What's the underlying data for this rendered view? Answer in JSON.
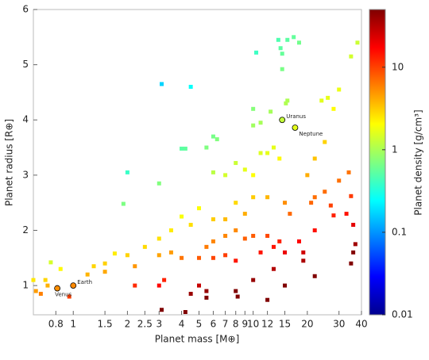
{
  "chart_data": {
    "type": "scatter",
    "x_label": "Planet mass [M⊕]",
    "y_label": "Planet radius [R⊕]",
    "colorbar_label": "Planet density [g/cm³]",
    "x_scale": "log",
    "xlim": [
      0.6,
      40
    ],
    "xticks": [
      0.8,
      1,
      1.5,
      2,
      2.5,
      3,
      4,
      5,
      6,
      7,
      8,
      9,
      10,
      12,
      15,
      20,
      30,
      40
    ],
    "ylim": [
      0.47,
      6
    ],
    "yticks": [
      1,
      2,
      3,
      4,
      5,
      6
    ],
    "colorbar_scale": "log",
    "clim": [
      0.01,
      50
    ],
    "colorbar_ticks": [
      0.01,
      0.1,
      1,
      10
    ],
    "colormap": "jet",
    "x": [
      3.1,
      4.5,
      2,
      10.4,
      4,
      1.9,
      13.8,
      14.2,
      15.5,
      16.8,
      18,
      14.5,
      14.5,
      15.5,
      15.2,
      10,
      12.5,
      10,
      11,
      6,
      6.3,
      5.5,
      4.2,
      13,
      12,
      14,
      11,
      9,
      10,
      3,
      8,
      7,
      6,
      20,
      22,
      25,
      28,
      30,
      35,
      38,
      24,
      26,
      34,
      30,
      25,
      22,
      21,
      27,
      28,
      33,
      35,
      10,
      12,
      15,
      16,
      8,
      9,
      7,
      6,
      5,
      4,
      4.5,
      3.5,
      3,
      2.5,
      2,
      1.7,
      1.5,
      1.3,
      1.2,
      1.5,
      2.2,
      3,
      3.5,
      4,
      5,
      5.5,
      6,
      7,
      8,
      9,
      10,
      12,
      14,
      6,
      7,
      8,
      11,
      13,
      18,
      19,
      15,
      5,
      5.5,
      8,
      8.2,
      10,
      4.2,
      3.1,
      5.5,
      4.5,
      12,
      22,
      35,
      36,
      37,
      36,
      0.62,
      0.66,
      0.7,
      0.72,
      0.75,
      0.85,
      0.95,
      0.6,
      3,
      3.2,
      2.2,
      15,
      13,
      19,
      22
    ],
    "y": [
      4.65,
      4.6,
      3.05,
      5.22,
      3.48,
      2.48,
      5.45,
      5.3,
      5.45,
      5.5,
      5.4,
      5.2,
      4.92,
      4.35,
      4.3,
      4.2,
      4.15,
      3.9,
      3.95,
      3.7,
      3.65,
      3.5,
      3.48,
      3.5,
      3.4,
      3.3,
      3.4,
      3.1,
      3.0,
      2.85,
      3.22,
      3.0,
      3.05,
      3.0,
      3.3,
      3.6,
      4.2,
      4.55,
      5.15,
      5.4,
      4.35,
      4.4,
      3.05,
      2.9,
      2.7,
      2.6,
      2.5,
      2.45,
      2.27,
      2.3,
      2.62,
      2.6,
      2.6,
      2.5,
      2.3,
      2.5,
      2.3,
      2.2,
      2.2,
      2.4,
      2.25,
      2.1,
      2.0,
      1.85,
      1.7,
      1.55,
      1.58,
      1.4,
      1.35,
      1.2,
      1.25,
      1.35,
      1.55,
      1.6,
      1.5,
      1.5,
      1.7,
      1.8,
      1.9,
      2.0,
      1.85,
      1.9,
      1.9,
      1.8,
      1.5,
      1.55,
      1.45,
      1.6,
      1.7,
      1.8,
      1.6,
      1.6,
      1.0,
      0.9,
      0.9,
      0.8,
      1.1,
      0.52,
      0.56,
      0.78,
      0.85,
      0.74,
      1.17,
      1.4,
      1.6,
      1.75,
      2.1,
      0.9,
      0.85,
      1.1,
      1.0,
      1.42,
      1.3,
      0.8,
      1.1,
      1.0,
      1.1,
      1.0,
      1.0,
      1.3,
      1.45,
      2.0
    ],
    "planets": [
      {
        "label": "Venus",
        "x": 0.815,
        "y": 0.95
      },
      {
        "label": "Earth",
        "x": 1,
        "y": 1
      },
      {
        "label": "Uranus",
        "x": 14.5,
        "y": 4.0
      },
      {
        "label": "Neptune",
        "x": 17.1,
        "y": 3.86
      }
    ]
  }
}
